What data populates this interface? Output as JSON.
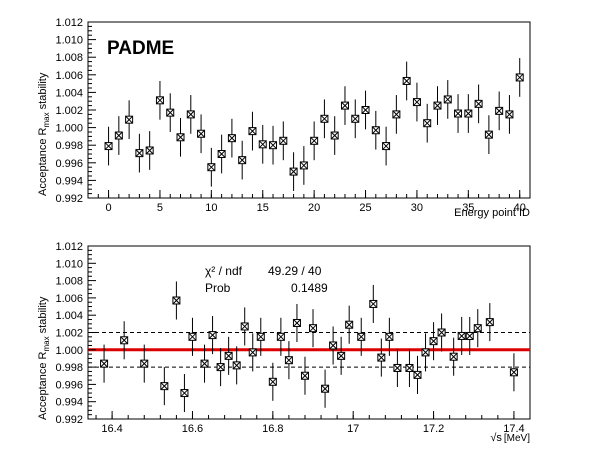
{
  "chart_data": [
    {
      "type": "scatter",
      "logo": "PADME",
      "xlabel": "Energy point ID",
      "ylabel_pre": "Acceptance R",
      "ylabel_sub": "max",
      "ylabel_post": " stability",
      "xlim": [
        -2,
        41
      ],
      "ylim": [
        0.992,
        1.012
      ],
      "xticks": [
        "0",
        "5",
        "10",
        "15",
        "20",
        "25",
        "30",
        "35",
        "40"
      ],
      "yticks": [
        "0.992",
        "0.994",
        "0.996",
        "0.998",
        "1.000",
        "1.002",
        "1.004",
        "1.006",
        "1.008",
        "1.010",
        "1.012"
      ],
      "series": [
        {
          "x": [
            0,
            1,
            2,
            3,
            4,
            5,
            6,
            7,
            8,
            9,
            10,
            11,
            12,
            13,
            14,
            15,
            16,
            17,
            18,
            19,
            20,
            21,
            22,
            23,
            24,
            25,
            26,
            27,
            28,
            29,
            30,
            31,
            32,
            33,
            34,
            35,
            36,
            37,
            38,
            39,
            40
          ],
          "y": [
            0.9979,
            0.9991,
            1.0009,
            0.9971,
            0.9974,
            1.0031,
            1.0017,
            0.9989,
            1.0015,
            0.9993,
            0.9955,
            0.997,
            0.9988,
            0.9963,
            0.9996,
            0.9981,
            0.998,
            0.9985,
            0.995,
            0.9957,
            0.9985,
            1.001,
            0.9991,
            1.0025,
            1.001,
            1.002,
            0.9997,
            0.9979,
            1.0015,
            1.0053,
            1.0029,
            1.0005,
            1.0025,
            1.0032,
            1.0016,
            1.0016,
            1.0027,
            0.9992,
            1.0019,
            1.0015,
            1.0057
          ],
          "err": 0.0022
        }
      ]
    },
    {
      "type": "scatter",
      "xlabel_sym": "√s",
      "xlabel_unit": "[MeV]",
      "ylabel_pre": "Acceptance R",
      "ylabel_sub": "max",
      "ylabel_post": " stability",
      "xlim": [
        16.34,
        17.44
      ],
      "ylim": [
        0.992,
        1.012
      ],
      "xticks": [
        "16.4",
        "16.6",
        "16.8",
        "17",
        "17.2",
        "17.4"
      ],
      "xtick_values": [
        16.4,
        16.6,
        16.8,
        17.0,
        17.2,
        17.4
      ],
      "yticks": [
        "0.992",
        "0.994",
        "0.996",
        "0.998",
        "1.000",
        "1.002",
        "1.004",
        "1.006",
        "1.008",
        "1.010",
        "1.012"
      ],
      "fit_line": 1.0,
      "band": [
        0.998,
        1.002
      ],
      "stats": {
        "chi2_label": "χ² / ndf",
        "chi2_value": "49.29 / 40",
        "prob_label": "Prob",
        "prob_value": "0.1489"
      },
      "series": [
        {
          "x": [
            16.38,
            16.43,
            16.48,
            16.53,
            16.56,
            16.58,
            16.6,
            16.63,
            16.65,
            16.67,
            16.69,
            16.71,
            16.73,
            16.75,
            16.77,
            16.8,
            16.82,
            16.84,
            16.86,
            16.88,
            16.9,
            16.93,
            16.95,
            16.97,
            16.99,
            17.02,
            17.05,
            17.07,
            17.09,
            17.11,
            17.14,
            17.16,
            17.18,
            17.2,
            17.22,
            17.25,
            17.27,
            17.29,
            17.31,
            17.34,
            17.4
          ],
          "y": [
            0.9984,
            1.0011,
            0.9984,
            0.9958,
            1.0057,
            0.995,
            1.0015,
            0.9984,
            1.0017,
            0.998,
            0.9993,
            0.9982,
            1.0027,
            0.9997,
            1.0015,
            0.9963,
            1.0015,
            0.9988,
            1.0031,
            0.997,
            1.0025,
            0.9955,
            1.0005,
            0.9993,
            1.0029,
            1.0015,
            1.0053,
            0.9991,
            1.0015,
            0.9979,
            0.9979,
            0.9971,
            0.9997,
            1.001,
            1.002,
            0.9992,
            1.0016,
            1.0016,
            1.0025,
            1.0032,
            0.9974
          ],
          "err": 0.0022
        }
      ]
    }
  ]
}
